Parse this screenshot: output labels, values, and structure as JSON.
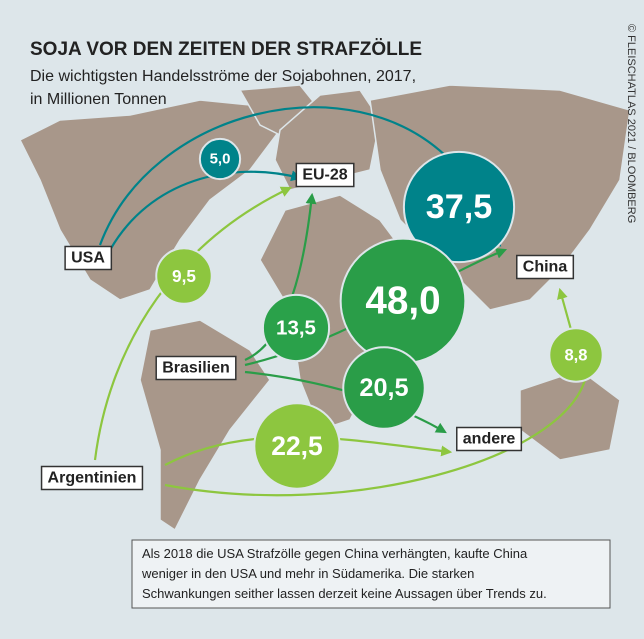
{
  "title": "SOJA VOR DEN ZEITEN DER STRAFZÖLLE",
  "subtitle": [
    "Die wichtigsten Handelsströme der Sojabohnen, 2017,",
    "in Millionen Tonnen"
  ],
  "credit": "© FLEISCHATLAS 2021 / BLOOMBERG",
  "places": [
    "USA",
    "EU-28",
    "China",
    "Brasilien",
    "andere",
    "Argentinien"
  ],
  "flows": [
    {
      "value": 37.5,
      "label": "37,5"
    },
    {
      "value": 5.0,
      "label": "5,0"
    },
    {
      "value": 9.5,
      "label": "9,5"
    },
    {
      "value": 13.5,
      "label": "13,5"
    },
    {
      "value": 48.0,
      "label": "48,0"
    },
    {
      "value": 20.5,
      "label": "20,5"
    },
    {
      "value": 22.5,
      "label": "22,5"
    },
    {
      "value": 8.8,
      "label": "8,8"
    }
  ],
  "note": [
    "Als 2018 die USA Strafzölle gegen China verhängten, kaufte China",
    "weniger in den USA und mehr in Südamerika. Die starken",
    "Schwankungen seither lassen derzeit keine Aussagen über Trends zu."
  ]
}
